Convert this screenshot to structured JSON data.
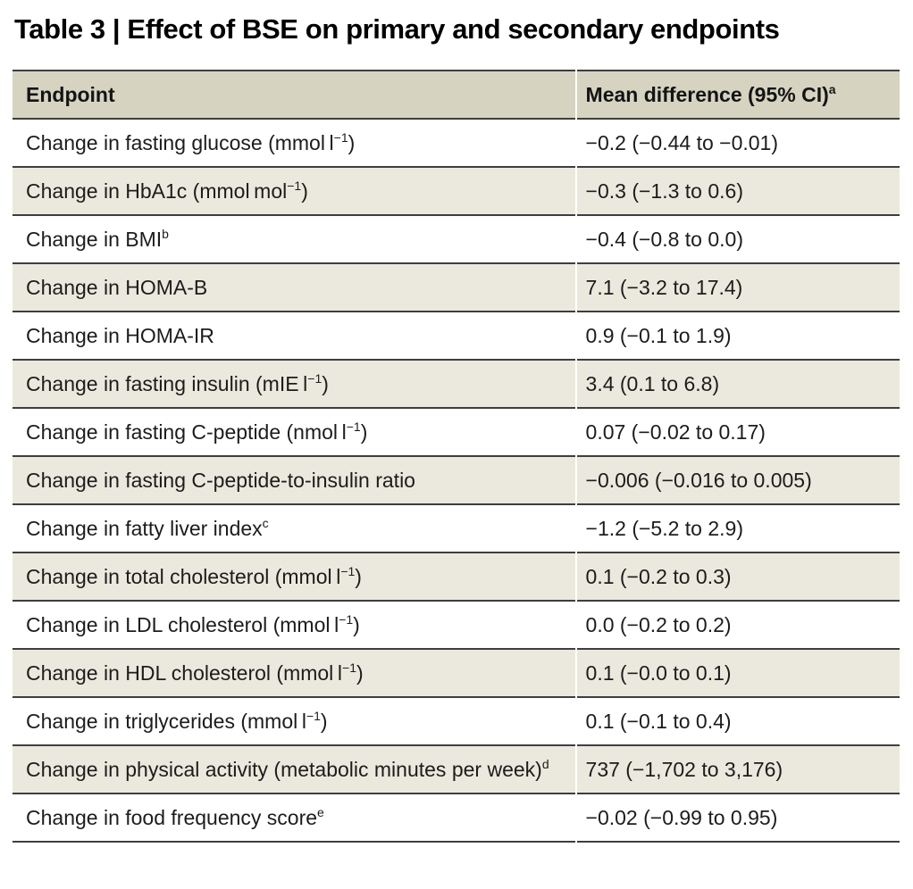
{
  "title": "Table 3 | Effect of BSE on primary and secondary endpoints",
  "colors": {
    "header_background": "#d6d3c1",
    "stripe_background": "#ebe9dd",
    "row_border": "#3e3e3e",
    "text": "#1c1c1c",
    "page_background": "#ffffff"
  },
  "table": {
    "columns": [
      {
        "label": "Endpoint",
        "sup": ""
      },
      {
        "label": "Mean difference (95% CI)",
        "sup": "a"
      }
    ],
    "rows": [
      {
        "endpoint": "Change in fasting glucose (mmol l",
        "endpoint_sup": "−1",
        "endpoint_post": ")",
        "value": "−0.2 (−0.44 to −0.01)"
      },
      {
        "endpoint": "Change in HbA1c (mmol mol",
        "endpoint_sup": "−1",
        "endpoint_post": ")",
        "value": "−0.3 (−1.3 to 0.6)"
      },
      {
        "endpoint": "Change in BMI",
        "endpoint_sup": "b",
        "endpoint_post": "",
        "value": "−0.4 (−0.8 to 0.0)"
      },
      {
        "endpoint": "Change in HOMA-B",
        "endpoint_sup": "",
        "endpoint_post": "",
        "value": "7.1 (−3.2 to 17.4)"
      },
      {
        "endpoint": "Change in HOMA-IR",
        "endpoint_sup": "",
        "endpoint_post": "",
        "value": "0.9 (−0.1 to 1.9)"
      },
      {
        "endpoint": "Change in fasting insulin (mIE l",
        "endpoint_sup": "−1",
        "endpoint_post": ")",
        "value": "3.4 (0.1 to 6.8)"
      },
      {
        "endpoint": "Change in fasting C-peptide (nmol l",
        "endpoint_sup": "−1",
        "endpoint_post": ")",
        "value": "0.07 (−0.02 to 0.17)"
      },
      {
        "endpoint": "Change in fasting C-peptide-to-insulin ratio",
        "endpoint_sup": "",
        "endpoint_post": "",
        "value": "−0.006 (−0.016 to 0.005)"
      },
      {
        "endpoint": "Change in fatty liver index",
        "endpoint_sup": "c",
        "endpoint_post": "",
        "value": "−1.2 (−5.2 to 2.9)"
      },
      {
        "endpoint": "Change in total cholesterol (mmol l",
        "endpoint_sup": "−1",
        "endpoint_post": ")",
        "value": "0.1 (−0.2 to 0.3)"
      },
      {
        "endpoint": "Change in LDL cholesterol (mmol l",
        "endpoint_sup": "−1",
        "endpoint_post": ")",
        "value": "0.0 (−0.2 to 0.2)"
      },
      {
        "endpoint": "Change in HDL cholesterol (mmol l",
        "endpoint_sup": "−1",
        "endpoint_post": ")",
        "value": "0.1 (−0.0 to 0.1)"
      },
      {
        "endpoint": "Change in triglycerides (mmol l",
        "endpoint_sup": "−1",
        "endpoint_post": ")",
        "value": "0.1 (−0.1 to 0.4)"
      },
      {
        "endpoint": "Change in physical activity (metabolic minutes per week)",
        "endpoint_sup": "d",
        "endpoint_post": "",
        "value": "737 (−1,702 to 3,176)"
      },
      {
        "endpoint": "Change in food frequency score",
        "endpoint_sup": "e",
        "endpoint_post": "",
        "value": "−0.02 (−0.99 to 0.95)"
      }
    ]
  }
}
